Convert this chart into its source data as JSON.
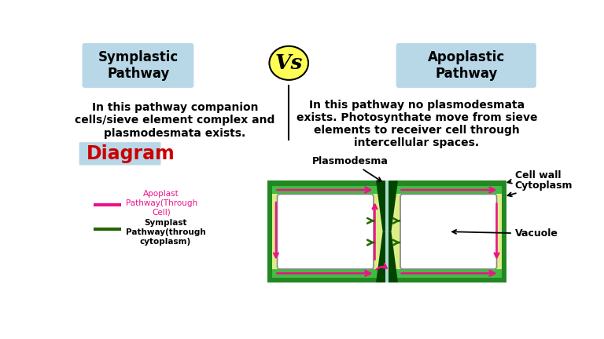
{
  "bg_color": "#ffffff",
  "symplastic_title": "Symplastic\nPathway",
  "apoplastic_title": "Apoplastic\nPathway",
  "vs_text": "Vs",
  "vs_bg": "#ffff55",
  "header_bg": "#b8d8e8",
  "symplastic_desc": "In this pathway companion\ncells/sieve element complex and\nplasmodesmata exists.",
  "apoplastic_desc": "In this pathway no plasmodesmata\nexists. Photosynthate move from sieve\nelements to receiver cell through\nintercellular spaces.",
  "diagram_title": "Diagram",
  "diagram_title_color": "#cc0000",
  "legend_apoplast_label": "Apoplast\nPathway(Through\nCell)",
  "legend_symplast_label": "Symplast\nPathway(through\ncytoplasm)",
  "apoplast_color": "#ee1188",
  "symplast_color": "#226600",
  "cell_wall_color": "#44bb44",
  "cytoplasm_color": "#ddee88",
  "vacuole_color": "#ffffff",
  "plasmodesma_color": "#004400",
  "plasmodesma_light": "#aaddcc",
  "outer_border_color": "#33aa33",
  "annotation_plasmodesma": "Plasmodesma",
  "annotation_cell_wall": "Cell wall",
  "annotation_cytoplasm": "Cytoplasm",
  "annotation_vacuole": "Vacuole"
}
